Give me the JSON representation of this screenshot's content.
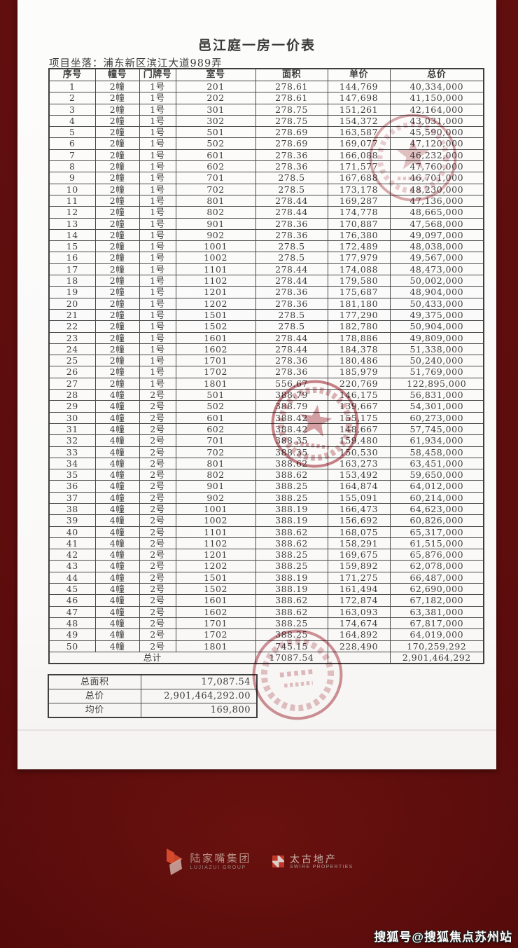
{
  "document": {
    "title": "邑江庭一房一价表",
    "location_line": "项目坐落：浦东新区滨江大道989弄",
    "table": {
      "headers": [
        "序号",
        "幢号",
        "门牌号",
        "室号",
        "面积",
        "单价",
        "总价"
      ],
      "rows": [
        [
          "1",
          "2幢",
          "1号",
          "201",
          "278.61",
          "144,769",
          "40,334,000"
        ],
        [
          "2",
          "2幢",
          "1号",
          "202",
          "278.61",
          "147,698",
          "41,150,000"
        ],
        [
          "3",
          "2幢",
          "1号",
          "301",
          "278.75",
          "151,261",
          "42,164,000"
        ],
        [
          "4",
          "2幢",
          "1号",
          "302",
          "278.75",
          "154,372",
          "43,031,000"
        ],
        [
          "5",
          "2幢",
          "1号",
          "501",
          "278.69",
          "163,587",
          "45,590,000"
        ],
        [
          "6",
          "2幢",
          "1号",
          "502",
          "278.69",
          "169,077",
          "47,120,000"
        ],
        [
          "7",
          "2幢",
          "1号",
          "601",
          "278.36",
          "166,088",
          "46,232,000"
        ],
        [
          "8",
          "2幢",
          "1号",
          "602",
          "278.36",
          "171,577",
          "47,760,000"
        ],
        [
          "9",
          "2幢",
          "1号",
          "701",
          "278.5",
          "167,688",
          "46,701,000"
        ],
        [
          "10",
          "2幢",
          "1号",
          "702",
          "278.5",
          "173,178",
          "48,230,000"
        ],
        [
          "11",
          "2幢",
          "1号",
          "801",
          "278.44",
          "169,287",
          "47,136,000"
        ],
        [
          "12",
          "2幢",
          "1号",
          "802",
          "278.44",
          "174,778",
          "48,665,000"
        ],
        [
          "13",
          "2幢",
          "1号",
          "901",
          "278.36",
          "170,887",
          "47,568,000"
        ],
        [
          "14",
          "2幢",
          "1号",
          "902",
          "278.36",
          "176,380",
          "49,097,000"
        ],
        [
          "15",
          "2幢",
          "1号",
          "1001",
          "278.5",
          "172,489",
          "48,038,000"
        ],
        [
          "16",
          "2幢",
          "1号",
          "1002",
          "278.5",
          "177,979",
          "49,567,000"
        ],
        [
          "17",
          "2幢",
          "1号",
          "1101",
          "278.44",
          "174,088",
          "48,473,000"
        ],
        [
          "18",
          "2幢",
          "1号",
          "1102",
          "278.44",
          "179,580",
          "50,002,000"
        ],
        [
          "19",
          "2幢",
          "1号",
          "1201",
          "278.36",
          "175,687",
          "48,904,000"
        ],
        [
          "20",
          "2幢",
          "1号",
          "1202",
          "278.36",
          "181,180",
          "50,433,000"
        ],
        [
          "21",
          "2幢",
          "1号",
          "1501",
          "278.5",
          "177,290",
          "49,375,000"
        ],
        [
          "22",
          "2幢",
          "1号",
          "1502",
          "278.5",
          "182,780",
          "50,904,000"
        ],
        [
          "23",
          "2幢",
          "1号",
          "1601",
          "278.44",
          "178,886",
          "49,809,000"
        ],
        [
          "24",
          "2幢",
          "1号",
          "1602",
          "278.44",
          "184,378",
          "51,338,000"
        ],
        [
          "25",
          "2幢",
          "1号",
          "1701",
          "278.36",
          "180,486",
          "50,240,000"
        ],
        [
          "26",
          "2幢",
          "1号",
          "1702",
          "278.36",
          "185,979",
          "51,769,000"
        ],
        [
          "27",
          "2幢",
          "1号",
          "1801",
          "556.67",
          "220,769",
          "122,895,000"
        ],
        [
          "28",
          "4幢",
          "2号",
          "501",
          "388.79",
          "146,175",
          "56,831,000"
        ],
        [
          "29",
          "4幢",
          "2号",
          "502",
          "388.79",
          "139,667",
          "54,301,000"
        ],
        [
          "30",
          "4幢",
          "2号",
          "601",
          "388.42",
          "155,175",
          "60,273,000"
        ],
        [
          "31",
          "4幢",
          "2号",
          "602",
          "388.42",
          "148,667",
          "57,745,000"
        ],
        [
          "32",
          "4幢",
          "2号",
          "701",
          "388.35",
          "159,480",
          "61,934,000"
        ],
        [
          "33",
          "4幢",
          "2号",
          "702",
          "388.35",
          "150,530",
          "58,458,000"
        ],
        [
          "34",
          "4幢",
          "2号",
          "801",
          "388.62",
          "163,273",
          "63,451,000"
        ],
        [
          "35",
          "4幢",
          "2号",
          "802",
          "388.62",
          "153,492",
          "59,650,000"
        ],
        [
          "36",
          "4幢",
          "2号",
          "901",
          "388.25",
          "164,874",
          "64,012,000"
        ],
        [
          "37",
          "4幢",
          "2号",
          "902",
          "388.25",
          "155,091",
          "60,214,000"
        ],
        [
          "38",
          "4幢",
          "2号",
          "1001",
          "388.19",
          "166,473",
          "64,623,000"
        ],
        [
          "39",
          "4幢",
          "2号",
          "1002",
          "388.19",
          "156,692",
          "60,826,000"
        ],
        [
          "40",
          "4幢",
          "2号",
          "1101",
          "388.62",
          "168,075",
          "65,317,000"
        ],
        [
          "41",
          "4幢",
          "2号",
          "1102",
          "388.62",
          "158,291",
          "61,515,000"
        ],
        [
          "42",
          "4幢",
          "2号",
          "1201",
          "388.25",
          "169,675",
          "65,876,000"
        ],
        [
          "43",
          "4幢",
          "2号",
          "1202",
          "388.25",
          "159,892",
          "62,078,000"
        ],
        [
          "44",
          "4幢",
          "2号",
          "1501",
          "388.19",
          "171,275",
          "66,487,000"
        ],
        [
          "45",
          "4幢",
          "2号",
          "1502",
          "388.19",
          "161,494",
          "62,690,000"
        ],
        [
          "46",
          "4幢",
          "2号",
          "1601",
          "388.62",
          "172,874",
          "67,182,000"
        ],
        [
          "47",
          "4幢",
          "2号",
          "1602",
          "388.62",
          "163,093",
          "63,381,000"
        ],
        [
          "48",
          "4幢",
          "2号",
          "1701",
          "388.25",
          "174,674",
          "67,817,000"
        ],
        [
          "49",
          "4幢",
          "2号",
          "1702",
          "388.25",
          "164,892",
          "64,019,000"
        ],
        [
          "50",
          "4幢",
          "2号",
          "1801",
          "745.15",
          "228,490",
          "170,259,292"
        ]
      ],
      "total_row": {
        "label": "总计",
        "area": "17087.54",
        "unit_price": "",
        "total_price": "2,901,464,292"
      }
    },
    "summary": {
      "rows": [
        {
          "label": "总面积",
          "value": "17,087.54"
        },
        {
          "label": "总价",
          "value": "2,901,464,292.00"
        },
        {
          "label": "均价",
          "value": "169,800"
        }
      ]
    },
    "stamps": [
      "red-seal-stamp-top",
      "red-seal-stamp-middle",
      "red-seal-stamp-bottom"
    ]
  },
  "footer": {
    "lujiazui": {
      "cn": "陆家嘴集团",
      "en": "LUJIAZUI GROUP"
    },
    "swire": {
      "cn": "太古地产",
      "en": "SWIRE PROPERTIES"
    }
  },
  "watermark": "搜狐号@搜狐焦点苏州站",
  "colors": {
    "background_maroon": "#5e0d0d",
    "page_white": "#fbfaf9",
    "stamp_red": "#b4515a",
    "lujiazui_orange": "#d5492c",
    "swire_red": "#c0392b"
  }
}
